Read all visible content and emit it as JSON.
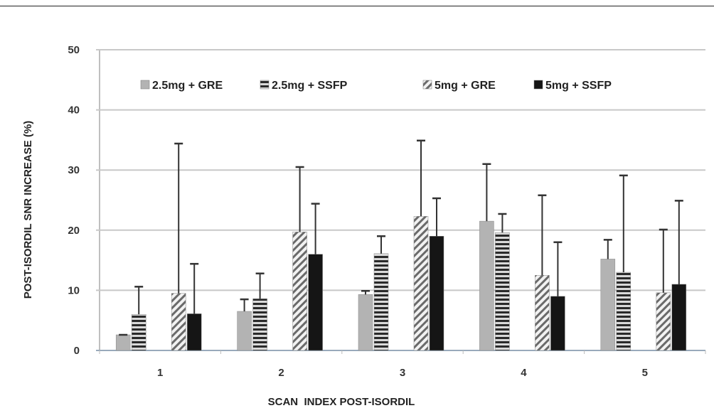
{
  "chart_data": {
    "type": "bar",
    "title": "",
    "xlabel": "SCAN  INDEX POST-ISORDIL",
    "ylabel": "POST-ISORDIL SNR INCREASE (%)",
    "ylim": [
      0,
      50
    ],
    "yticks": [
      "0",
      "10",
      "20",
      "30",
      "40",
      "50"
    ],
    "categories": [
      "1",
      "2",
      "3",
      "4",
      "5"
    ],
    "grid": true,
    "legend_position": "top",
    "series": [
      {
        "name": "2.5mg + GRE",
        "pattern": "solid-light",
        "color": "#b3b3b3",
        "values": [
          2.6,
          6.5,
          9.3,
          21.5,
          15.2
        ],
        "error_upper": [
          2.6,
          8.5,
          9.9,
          31.0,
          18.4
        ]
      },
      {
        "name": "2.5mg + SSFP",
        "pattern": "horizontal-lines",
        "color": "#555555",
        "values": [
          6.0,
          8.6,
          16.1,
          19.6,
          13.0
        ],
        "error_upper": [
          10.6,
          12.8,
          19.0,
          22.7,
          29.1
        ]
      },
      {
        "name": "5mg + GRE",
        "pattern": "diagonal-lines",
        "color": "#8a8a8a",
        "values": [
          9.5,
          19.7,
          22.3,
          12.5,
          9.6
        ],
        "error_upper": [
          34.4,
          30.5,
          34.9,
          25.8,
          20.1
        ]
      },
      {
        "name": "5mg + SSFP",
        "pattern": "solid-dark",
        "color": "#151515",
        "values": [
          6.1,
          16.0,
          19.0,
          9.0,
          11.0
        ],
        "error_upper": [
          14.4,
          24.4,
          25.3,
          18.0,
          24.9
        ]
      }
    ]
  }
}
